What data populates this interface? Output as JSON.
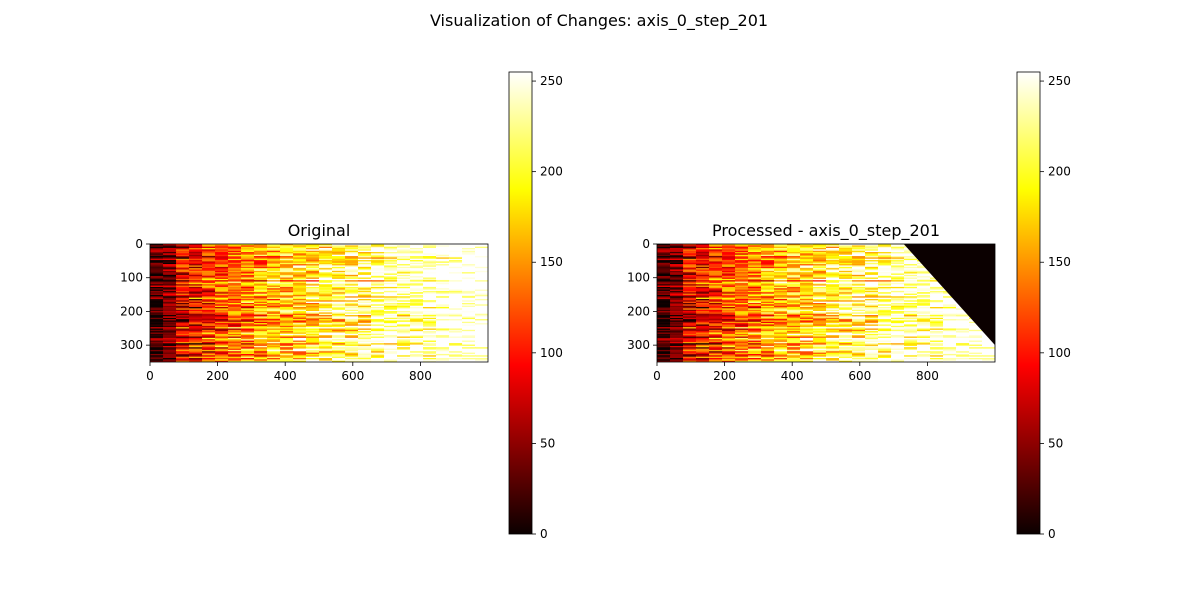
{
  "figure": {
    "suptitle": "Visualization of Changes: axis_0_step_201"
  },
  "chart_data": [
    {
      "type": "heatmap",
      "title": "Original",
      "colormap": "hot",
      "image_shape": [
        350,
        1000
      ],
      "xlim": [
        0,
        1000
      ],
      "ylim": [
        350,
        0
      ],
      "xticks": [
        0,
        200,
        400,
        600,
        800
      ],
      "yticks": [
        0,
        100,
        200,
        300
      ],
      "description_values": "row-striped intensity, dark on the left increasing to bright on the right",
      "colorbar": {
        "min": 0,
        "max": 255,
        "ticks": [
          0,
          50,
          100,
          150,
          200,
          250
        ]
      },
      "masked_region": null
    },
    {
      "type": "heatmap",
      "title": "Processed - axis_0_step_201",
      "colormap": "hot",
      "image_shape": [
        350,
        1000
      ],
      "xlim": [
        0,
        1000
      ],
      "ylim": [
        350,
        0
      ],
      "xticks": [
        0,
        200,
        400,
        600,
        800
      ],
      "yticks": [
        0,
        100,
        200,
        300
      ],
      "colorbar": {
        "min": 0,
        "max": 255,
        "ticks": [
          0,
          50,
          100,
          150,
          200,
          250
        ]
      },
      "masked_region": {
        "value": 0,
        "vertices": [
          [
            730,
            0
          ],
          [
            1000,
            0
          ],
          [
            1000,
            300
          ]
        ]
      }
    }
  ],
  "colors": {
    "hot_stops": [
      "#0b0000",
      "#ff0000",
      "#ffff00",
      "#ffffff"
    ]
  }
}
